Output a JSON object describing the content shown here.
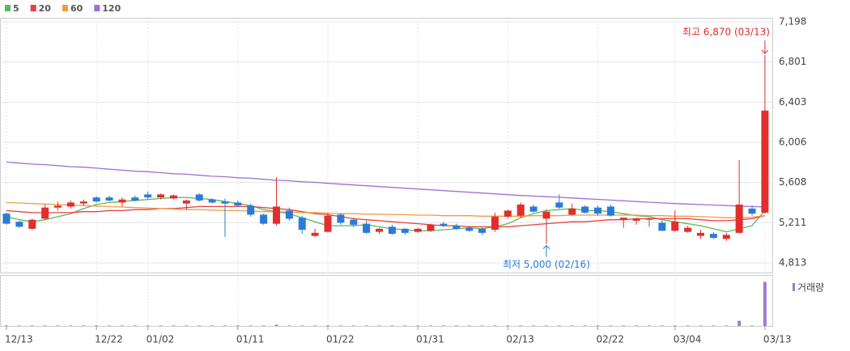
{
  "chart_data": {
    "type": "candlestick",
    "categories": [
      "12/13",
      null,
      null,
      null,
      null,
      null,
      null,
      "12/22",
      null,
      null,
      null,
      "01/02",
      null,
      null,
      null,
      null,
      null,
      null,
      "01/11",
      null,
      null,
      null,
      null,
      null,
      null,
      "01/22",
      null,
      null,
      null,
      null,
      null,
      null,
      "01/31",
      null,
      null,
      null,
      null,
      null,
      null,
      "02/13",
      null,
      null,
      null,
      null,
      null,
      null,
      "02/22",
      null,
      null,
      null,
      null,
      null,
      "03/04",
      null,
      null,
      null,
      null,
      null,
      null,
      "03/13"
    ],
    "open": [
      5300,
      5220,
      5150,
      5250,
      5360,
      5370,
      5400,
      5460,
      5460,
      5410,
      5460,
      5490,
      5460,
      5450,
      5400,
      5490,
      5440,
      5420,
      5410,
      5380,
      5290,
      5200,
      5330,
      5260,
      5080,
      5120,
      5290,
      5240,
      5200,
      5120,
      5170,
      5150,
      5120,
      5130,
      5200,
      5180,
      5160,
      5150,
      5140,
      5270,
      5280,
      5370,
      5250,
      5410,
      5290,
      5370,
      5360,
      5370,
      5240,
      5230,
      5240,
      5210,
      5130,
      5120,
      5080,
      5100,
      5050,
      5110,
      5350,
      5310
    ],
    "high": [
      5310,
      5230,
      5250,
      5390,
      5420,
      5430,
      5440,
      5470,
      5480,
      5460,
      5480,
      5520,
      5500,
      5490,
      5440,
      5500,
      5450,
      5450,
      5430,
      5400,
      5300,
      5660,
      5360,
      5280,
      5150,
      5310,
      5300,
      5260,
      5230,
      5160,
      5190,
      5160,
      5160,
      5200,
      5220,
      5200,
      5180,
      5170,
      5310,
      5340,
      5410,
      5390,
      5340,
      5490,
      5400,
      5380,
      5380,
      5390,
      5260,
      5260,
      5260,
      5230,
      5330,
      5180,
      5140,
      5120,
      5110,
      5830,
      5380,
      6870
    ],
    "low": [
      5190,
      5160,
      5140,
      5240,
      5330,
      5350,
      5380,
      5410,
      5420,
      5370,
      5420,
      5440,
      5440,
      5440,
      5340,
      5420,
      5400,
      5070,
      5370,
      5270,
      5190,
      5180,
      5230,
      5100,
      5070,
      5110,
      5190,
      5170,
      5100,
      5100,
      5090,
      5090,
      5110,
      5120,
      5170,
      5140,
      5120,
      5090,
      5120,
      5250,
      5260,
      5310,
      5000,
      5350,
      5280,
      5300,
      5280,
      5270,
      5160,
      5190,
      5170,
      5130,
      5120,
      5110,
      5050,
      5050,
      5030,
      5100,
      5280,
      5300
    ],
    "close": [
      5200,
      5170,
      5240,
      5360,
      5380,
      5410,
      5420,
      5420,
      5430,
      5440,
      5430,
      5460,
      5490,
      5480,
      5430,
      5430,
      5410,
      5400,
      5380,
      5290,
      5200,
      5370,
      5250,
      5140,
      5110,
      5280,
      5210,
      5190,
      5110,
      5150,
      5100,
      5110,
      5150,
      5190,
      5180,
      5150,
      5130,
      5110,
      5270,
      5330,
      5390,
      5320,
      5320,
      5360,
      5350,
      5310,
      5300,
      5280,
      5260,
      5250,
      5250,
      5130,
      5220,
      5160,
      5110,
      5060,
      5090,
      5390,
      5300,
      6320
    ],
    "up_color": "#e02f2c",
    "down_color": "#2b7bd6",
    "ylim": [
      4709,
      7238
    ],
    "yticks": [
      {
        "value": 4813,
        "label": "4,813"
      },
      {
        "value": 5211,
        "label": "5,211"
      },
      {
        "value": 5608,
        "label": "5,608"
      },
      {
        "value": 6006,
        "label": "6,006"
      },
      {
        "value": 6403,
        "label": "6,403"
      },
      {
        "value": 6801,
        "label": "6,801"
      },
      {
        "value": 7198,
        "label": "7,198"
      }
    ],
    "grid": true,
    "series": [
      {
        "name": "5",
        "color": "#5cb85c",
        "values": [
          5270,
          5240,
          5220,
          5240,
          5270,
          5300,
          5350,
          5390,
          5410,
          5420,
          5430,
          5440,
          5450,
          5460,
          5460,
          5450,
          5440,
          5420,
          5400,
          5380,
          5340,
          5320,
          5300,
          5260,
          5220,
          5180,
          5180,
          5180,
          5190,
          5170,
          5150,
          5140,
          5130,
          5130,
          5140,
          5150,
          5160,
          5150,
          5170,
          5200,
          5260,
          5300,
          5330,
          5340,
          5350,
          5330,
          5330,
          5320,
          5300,
          5280,
          5270,
          5240,
          5220,
          5200,
          5180,
          5150,
          5120,
          5150,
          5180,
          5330
        ]
      },
      {
        "name": "20",
        "color": "#e8413f",
        "values": [
          5330,
          5320,
          5310,
          5310,
          5310,
          5310,
          5320,
          5320,
          5330,
          5330,
          5340,
          5340,
          5350,
          5350,
          5360,
          5370,
          5370,
          5370,
          5370,
          5370,
          5360,
          5350,
          5340,
          5320,
          5300,
          5290,
          5270,
          5250,
          5240,
          5230,
          5220,
          5210,
          5200,
          5190,
          5180,
          5180,
          5170,
          5170,
          5170,
          5170,
          5180,
          5190,
          5200,
          5210,
          5220,
          5220,
          5230,
          5240,
          5240,
          5250,
          5250,
          5250,
          5250,
          5250,
          5240,
          5230,
          5230,
          5240,
          5250,
          5280
        ]
      },
      {
        "name": "60",
        "color": "#f29b45",
        "values": [
          5410,
          5405,
          5400,
          5395,
          5390,
          5385,
          5380,
          5375,
          5370,
          5365,
          5360,
          5355,
          5350,
          5345,
          5340,
          5340,
          5335,
          5330,
          5330,
          5325,
          5320,
          5320,
          5315,
          5310,
          5310,
          5305,
          5300,
          5300,
          5295,
          5295,
          5290,
          5290,
          5285,
          5285,
          5280,
          5280,
          5280,
          5275,
          5275,
          5275,
          5275,
          5280,
          5280,
          5280,
          5285,
          5285,
          5285,
          5285,
          5285,
          5285,
          5280,
          5280,
          5275,
          5275,
          5270,
          5265,
          5260,
          5260,
          5265,
          5280
        ]
      },
      {
        "name": "120",
        "color": "#a070d0",
        "values": [
          5810,
          5800,
          5790,
          5785,
          5775,
          5765,
          5760,
          5750,
          5740,
          5730,
          5720,
          5715,
          5705,
          5695,
          5690,
          5680,
          5670,
          5665,
          5655,
          5650,
          5640,
          5630,
          5625,
          5615,
          5610,
          5600,
          5592,
          5584,
          5576,
          5568,
          5560,
          5552,
          5544,
          5536,
          5528,
          5520,
          5512,
          5504,
          5496,
          5488,
          5480,
          5474,
          5468,
          5462,
          5455,
          5448,
          5441,
          5434,
          5427,
          5420,
          5413,
          5406,
          5400,
          5395,
          5390,
          5385,
          5380,
          5375,
          5370,
          5365
        ]
      }
    ],
    "volume": {
      "name": "거래량",
      "color": "#9b7fd0",
      "ylim": [
        0,
        1650000
      ],
      "values": [
        15000,
        15000,
        15000,
        15000,
        15000,
        15000,
        15000,
        15000,
        15000,
        15000,
        15000,
        15000,
        15000,
        15000,
        15000,
        15000,
        15000,
        15000,
        15000,
        15000,
        15000,
        40000,
        15000,
        15000,
        15000,
        15000,
        15000,
        15000,
        15000,
        15000,
        15000,
        15000,
        15000,
        15000,
        15000,
        15000,
        15000,
        15000,
        15000,
        15000,
        15000,
        15000,
        15000,
        15000,
        15000,
        15000,
        15000,
        15000,
        15000,
        15000,
        15000,
        15000,
        15000,
        15000,
        15000,
        15000,
        15000,
        170000,
        15000,
        1450000
      ]
    },
    "annotations": {
      "high": "최고 6,870 (03/13)",
      "low": "최저 5,000 (02/16)"
    }
  }
}
